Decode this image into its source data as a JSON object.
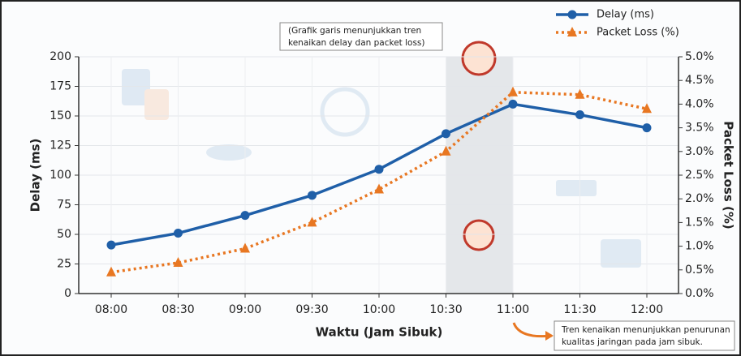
{
  "chart_data": {
    "type": "line",
    "x_label": "Waktu (Jam Sibuk)",
    "y_label": "Delay (ms)",
    "y2_label": "Packet Loss (%)",
    "categories": [
      "08:00",
      "08:30",
      "09:00",
      "09:30",
      "10:00",
      "10:30",
      "11:00",
      "11:30",
      "12:00"
    ],
    "series": [
      {
        "name": "Delay (ms)",
        "color": "#1f5fa8",
        "values": [
          41,
          51,
          66,
          83,
          105,
          135,
          160,
          151,
          140
        ]
      },
      {
        "name": "Packet Loss (%)",
        "color": "#e87722",
        "axis": "y2",
        "values": [
          0.45,
          0.65,
          0.95,
          1.5,
          2.2,
          3.0,
          4.25,
          4.2,
          3.9
        ]
      }
    ],
    "ylim": [
      0,
      200
    ],
    "yticks": [
      0,
      25,
      50,
      75,
      100,
      125,
      150,
      175,
      200
    ],
    "y2lim": [
      0,
      5
    ],
    "y2ticks": [
      {
        "value": 0,
        "label": "0.0%"
      },
      {
        "value": 0.5,
        "label": "0.5%"
      },
      {
        "value": 1,
        "label": "1.0%"
      },
      {
        "value": 1.5,
        "label": "1.5%"
      },
      {
        "value": 2,
        "label": "2.0%"
      },
      {
        "value": 2.5,
        "label": "2.5%"
      },
      {
        "value": 3,
        "label": "3.0%"
      },
      {
        "value": 3.5,
        "label": "3.5%"
      },
      {
        "value": 4,
        "label": "4.0%"
      },
      {
        "value": 4.5,
        "label": "4.5%"
      },
      {
        "value": 5,
        "label": "5.0%"
      }
    ],
    "grid": true,
    "legend": "top-right",
    "annotations": [
      {
        "lines": [
          "(Grafik garis menunjukkan tren",
          "kenaikan delay dan packet loss)"
        ]
      },
      {
        "lines": [
          "Tren kenaikan menunjukkan penurunan",
          "kualitas jaringan pada jam sibuk."
        ]
      }
    ]
  }
}
